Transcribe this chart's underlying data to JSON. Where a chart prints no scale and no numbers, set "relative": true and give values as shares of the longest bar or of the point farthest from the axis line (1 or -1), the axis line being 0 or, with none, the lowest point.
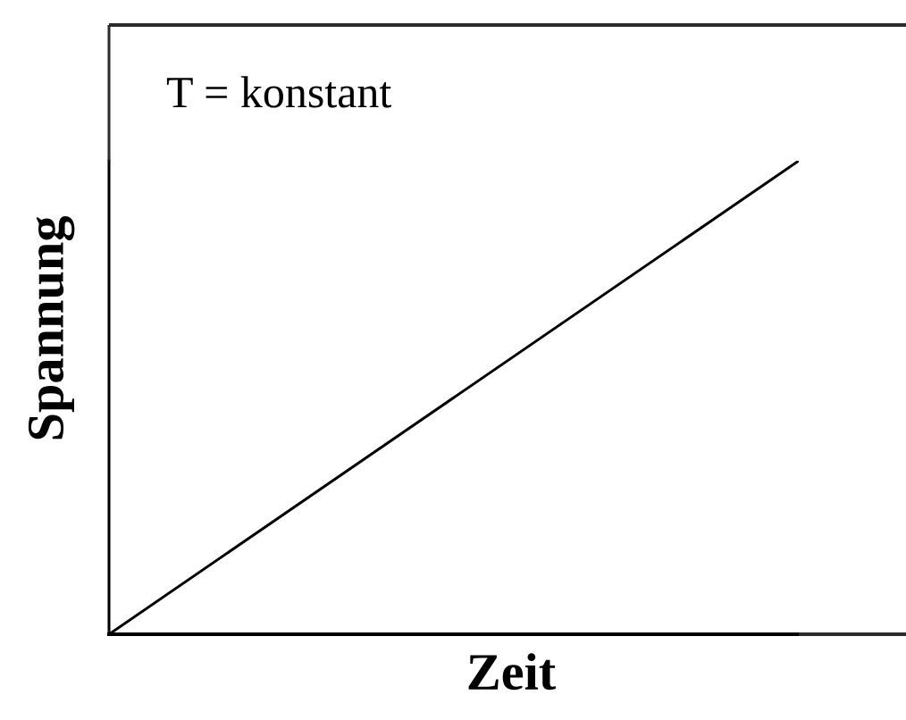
{
  "chart_data": {
    "type": "line",
    "xlabel": "Zeit",
    "ylabel": "Spannung",
    "annotations": [
      "T = konstant"
    ],
    "categories": [
      null,
      null
    ],
    "series": [
      {
        "color": "#000000",
        "values": [
          0,
          1
        ]
      }
    ],
    "relative": true,
    "grid": false,
    "marker": "none",
    "line_style": "solid"
  }
}
